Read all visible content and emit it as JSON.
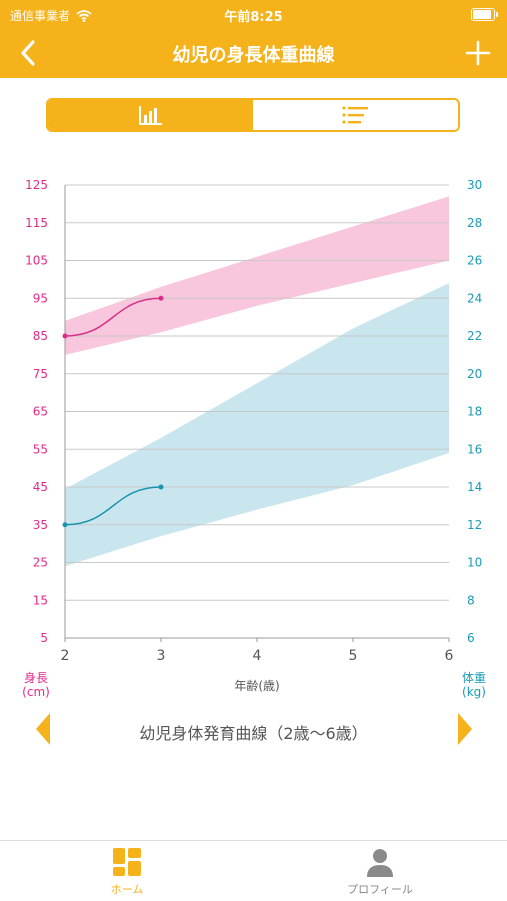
{
  "status_bar": {
    "carrier": "通信事業者",
    "time": "午前8:25",
    "battery_level": 1.0
  },
  "nav": {
    "title": "幼児の身長体重曲線"
  },
  "segmented": {
    "tabs": [
      {
        "icon": "bar-chart-icon",
        "selected": true
      },
      {
        "icon": "list-icon",
        "selected": false
      }
    ]
  },
  "chart_data": {
    "type": "line",
    "xlabel": "年齢(歳)",
    "x_ticks": [
      2,
      3,
      4,
      5,
      6
    ],
    "xlim": [
      2,
      6
    ],
    "y_left": {
      "label": "身長\n(cm)",
      "range": [
        5,
        125
      ],
      "ticks": [
        125,
        115,
        105,
        95,
        85,
        75,
        65,
        55,
        45,
        35,
        25,
        15,
        5
      ],
      "color": "#e02b8a"
    },
    "y_right": {
      "label": "体重\n(kg)",
      "range": [
        6,
        30
      ],
      "ticks": [
        30,
        28,
        26,
        24,
        22,
        20,
        18,
        16,
        14,
        12,
        10,
        8,
        6
      ],
      "color": "#1a9bb5"
    },
    "bands": [
      {
        "axis": "left",
        "color": "#f8c6dd",
        "lower": [
          [
            2,
            80
          ],
          [
            3,
            86
          ],
          [
            4,
            93
          ],
          [
            5,
            99
          ],
          [
            6,
            105
          ]
        ],
        "upper": [
          [
            2,
            89
          ],
          [
            3,
            98
          ],
          [
            4,
            106
          ],
          [
            5,
            114
          ],
          [
            6,
            122
          ]
        ]
      },
      {
        "axis": "right",
        "color": "#c9e6ee",
        "lower": [
          [
            2,
            9.8
          ],
          [
            3,
            11.4
          ],
          [
            4,
            12.8
          ],
          [
            5,
            14.1
          ],
          [
            6,
            15.8
          ]
        ],
        "upper": [
          [
            2,
            13.9
          ],
          [
            3,
            16.6
          ],
          [
            4,
            19.5
          ],
          [
            5,
            22.4
          ],
          [
            6,
            24.8
          ]
        ]
      }
    ],
    "series": [
      {
        "axis": "left",
        "color": "#d8308a",
        "points": [
          [
            2,
            85
          ],
          [
            3,
            95
          ]
        ]
      },
      {
        "axis": "right",
        "color": "#1a93ad",
        "points": [
          [
            2,
            12
          ],
          [
            3,
            14
          ]
        ]
      }
    ]
  },
  "selector": {
    "label": "幼児身体発育曲線（2歳〜6歳）"
  },
  "tabbar": {
    "home_label": "ホーム",
    "profile_label": "プロフィール"
  }
}
